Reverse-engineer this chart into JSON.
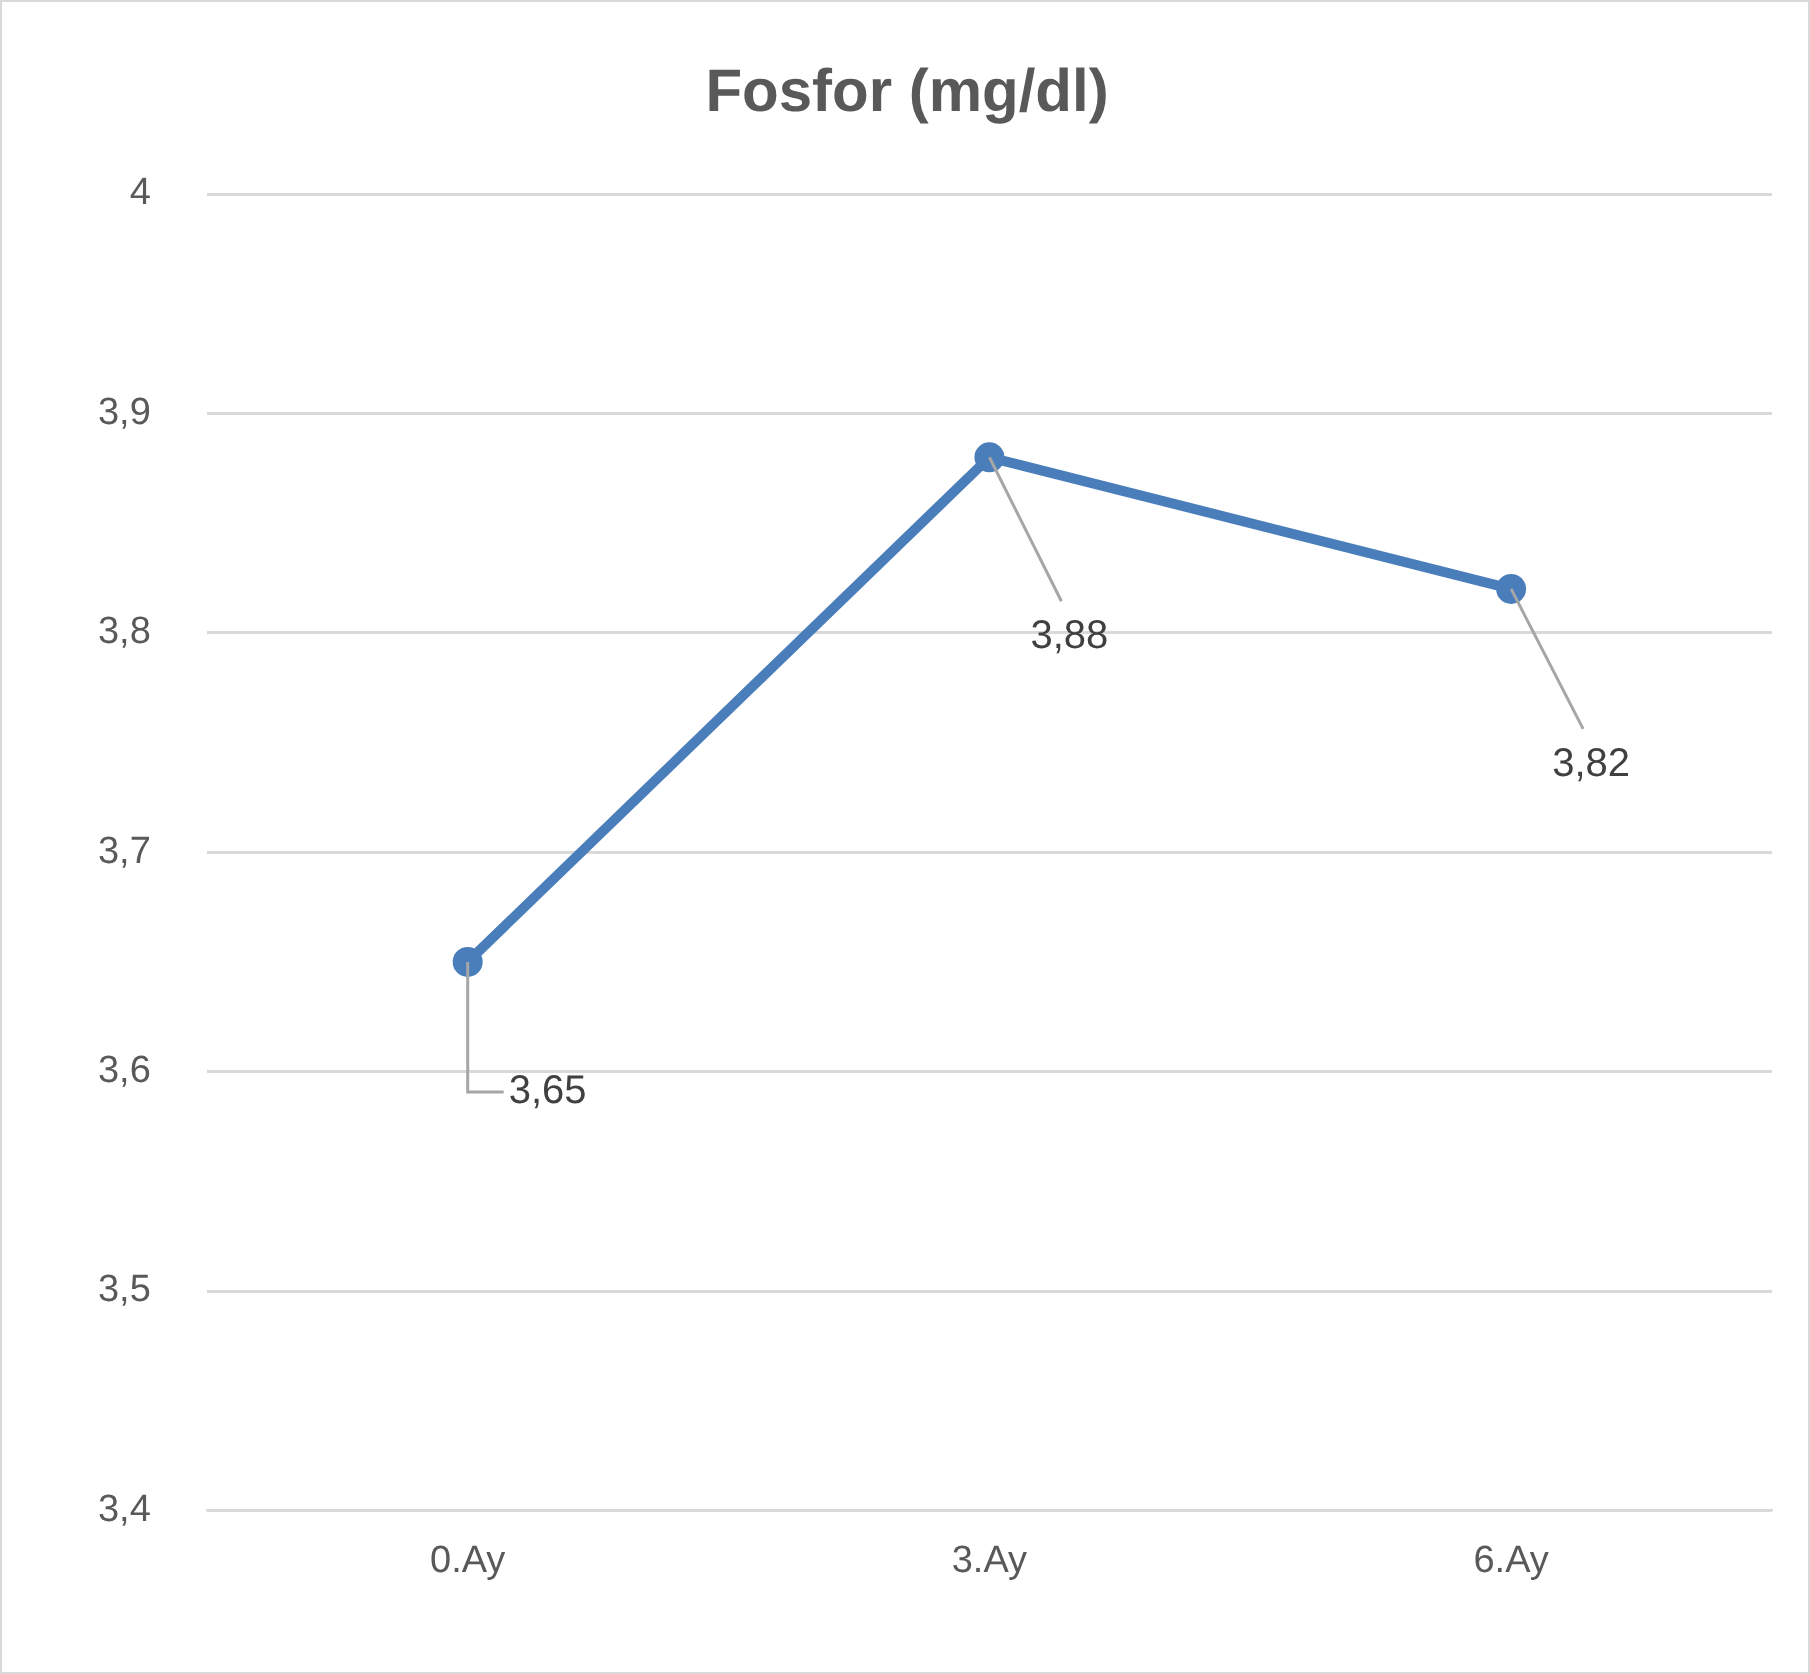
{
  "chart_data": {
    "type": "line",
    "title": "Fosfor (mg/dl)",
    "categories": [
      "0.Ay",
      "3.Ay",
      "6.Ay"
    ],
    "series": [
      {
        "color": "#4a7ebb",
        "values": [
          3.65,
          3.88,
          3.82
        ],
        "value_labels": [
          "3,65",
          "3,88",
          "3,82"
        ]
      }
    ],
    "ylim": [
      3.4,
      4
    ],
    "yticks": [
      {
        "value": 3.4,
        "label": "3,4"
      },
      {
        "value": 3.5,
        "label": "3,5"
      },
      {
        "value": 3.6,
        "label": "3,6"
      },
      {
        "value": 3.7,
        "label": "3,7"
      },
      {
        "value": 3.8,
        "label": "3,8"
      },
      {
        "value": 3.9,
        "label": "3,9"
      },
      {
        "value": 4,
        "label": "4"
      }
    ],
    "grid": "y",
    "legend": false,
    "marker": "circle",
    "line_style": "solid"
  }
}
